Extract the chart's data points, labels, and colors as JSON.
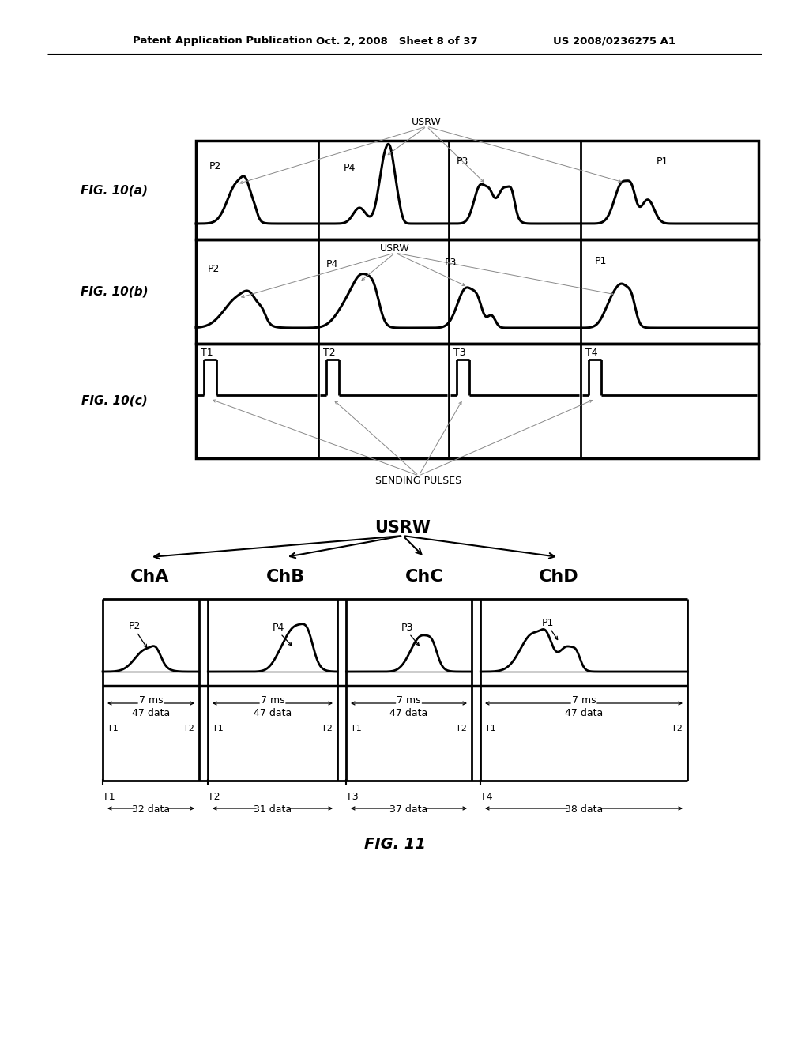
{
  "header_left": "Patent Application Publication",
  "header_mid": "Oct. 2, 2008   Sheet 8 of 37",
  "header_right": "US 2008/0236275 A1",
  "fig10a_label": "FIG. 10(a)",
  "fig10b_label": "FIG. 10(b)",
  "fig10c_label": "FIG. 10(c)",
  "fig11_label": "FIG. 11",
  "usrw_label": "USRW",
  "sending_pulses_label": "SENDING PULSES",
  "t_labels": [
    "T1",
    "T2",
    "T3",
    "T4"
  ],
  "p_labels_10a": [
    "P2",
    "P4",
    "P3",
    "P1"
  ],
  "p_labels_10b": [
    "P2",
    "P4",
    "P3",
    "P1"
  ],
  "ch_labels": [
    "ChA",
    "ChB",
    "ChC",
    "ChD"
  ],
  "time_labels": [
    "7 ms",
    "7 ms",
    "7 ms",
    "7 ms"
  ],
  "data_labels_47": [
    "47 data",
    "47 data",
    "47 data",
    "47 data"
  ],
  "data_labels_bottom": [
    "32 data",
    "31 data",
    "37 data",
    "38 data"
  ],
  "bg_color": "#ffffff",
  "line_color": "#000000",
  "text_color": "#000000"
}
